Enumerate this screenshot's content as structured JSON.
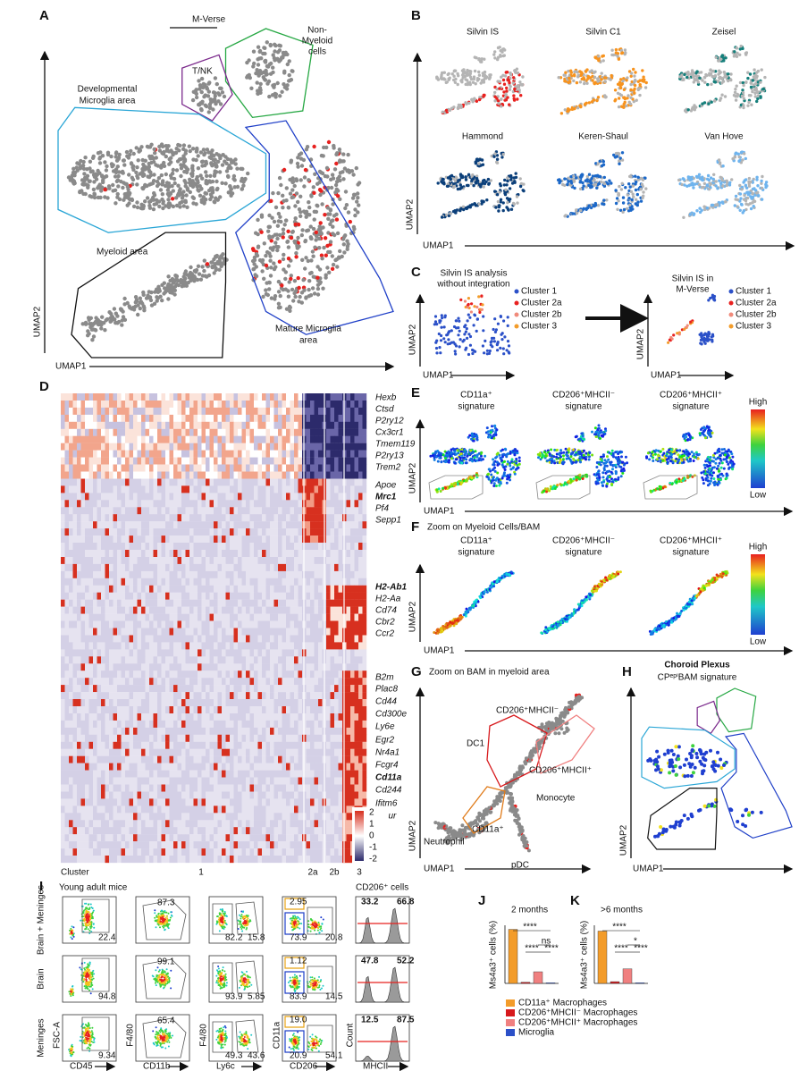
{
  "panels": {
    "A": {
      "label": "A",
      "title": "M-Verse",
      "tnk": "T/NK",
      "non_myeloid": [
        "Non-",
        "Myeloid",
        "cells"
      ],
      "developmental": [
        "Developmental",
        "Microglia area"
      ],
      "myeloid": "Myeloid area",
      "mature": [
        "Mature Microglia",
        "area"
      ],
      "x_axis": "UMAP1",
      "y_axis": "UMAP2"
    },
    "B": {
      "label": "B",
      "datasets": [
        "Silvin IS",
        "Silvin C1",
        "Zeisel",
        "Hammond",
        "Keren-Shaul",
        "Van Hove"
      ],
      "colors": [
        "#e8211f",
        "#f7931e",
        "#157f7b",
        "#0b3f7a",
        "#1c68c8",
        "#6fb4ee"
      ],
      "x_axis": "UMAP1",
      "y_axis": "UMAP2"
    },
    "C": {
      "label": "C",
      "left_title": [
        "Silvin IS analysis",
        "without integration"
      ],
      "right_title": [
        "Silvin IS in",
        "M-Verse"
      ],
      "legend": [
        {
          "name": "Cluster 1",
          "color": "#2b50c8"
        },
        {
          "name": "Cluster 2a",
          "color": "#e8211f"
        },
        {
          "name": "Cluster 2b",
          "color": "#f08a7a"
        },
        {
          "name": "Cluster 3",
          "color": "#f39c2a"
        }
      ],
      "x_axis": "UMAP1",
      "y_axis": "UMAP2"
    },
    "D": {
      "label": "D",
      "highlight_color": "#e02020",
      "genes": [
        {
          "name": "Hexb"
        },
        {
          "name": "Ctsd"
        },
        {
          "name": "P2ry12"
        },
        {
          "name": "Cx3cr1"
        },
        {
          "name": "Tmem119"
        },
        {
          "name": "P2ry13"
        },
        {
          "name": "Trem2"
        },
        {
          "name": "Apoe"
        },
        {
          "name": "Mrc1",
          "highlight": true
        },
        {
          "name": "Pf4"
        },
        {
          "name": "Sepp1"
        },
        {
          "name": "H2-Ab1",
          "highlight": true
        },
        {
          "name": "H2-Aa"
        },
        {
          "name": "Cd74"
        },
        {
          "name": "Cbr2"
        },
        {
          "name": "Ccr2"
        },
        {
          "name": "B2m"
        },
        {
          "name": "Plac8"
        },
        {
          "name": "Cd44"
        },
        {
          "name": "Cd300e"
        },
        {
          "name": "Ly6e"
        },
        {
          "name": "Egr2"
        },
        {
          "name": "Nr4a1"
        },
        {
          "name": "Fcgr4"
        },
        {
          "name": "Cd11a",
          "highlight": true
        },
        {
          "name": "Cd244"
        },
        {
          "name": "Ifitm6"
        },
        {
          "name": "Plaur"
        }
      ],
      "cluster_title": "Cluster",
      "clusters": [
        "1",
        "2a",
        "2b",
        "3"
      ],
      "colorbar": [
        2,
        1,
        0,
        -1,
        -2
      ]
    },
    "E": {
      "label": "E",
      "signatures": [
        [
          "CD11a⁺",
          "signature"
        ],
        [
          "CD206⁺MHCII⁻",
          "signature"
        ],
        [
          "CD206⁺MHCII⁺",
          "signature"
        ]
      ],
      "high": "High",
      "low": "Low",
      "x_axis": "UMAP1",
      "y_axis": "UMAP2"
    },
    "F": {
      "label": "F",
      "title": "Zoom on Myeloid Cells/BAM",
      "signatures": [
        [
          "CD11a⁺",
          "signature"
        ],
        [
          "CD206⁺MHCII⁻",
          "signature"
        ],
        [
          "CD206⁺MHCII⁺",
          "signature"
        ]
      ],
      "high": "High",
      "low": "Low",
      "x_axis": "UMAP1",
      "y_axis": "UMAP2"
    },
    "G": {
      "label": "G",
      "title": "Zoom on BAM in myeloid area",
      "mhcii_neg": "CD206⁺MHCII⁻",
      "dc1": "DC1",
      "mhcii_pos": "CD206⁺MHCII⁺",
      "monocyte": "Monocyte",
      "cd11a": "CD11a⁺",
      "neutrophil": "Neutrophil",
      "pdc": "pDC",
      "x_axis": "UMAP1",
      "y_axis": "UMAP2"
    },
    "H": {
      "label": "H",
      "title": "Choroid Plexus",
      "subtitle": "CPᵉᵖⁱBAM signature",
      "x_axis": "UMAP1",
      "y_axis": "UMAP2"
    },
    "I": {
      "label": "I",
      "subtitle": "Young adult mice",
      "histogram_title": "CD206⁺ cells",
      "x_axes": [
        "CD45",
        "CD11b",
        "Ly6c",
        "CD206",
        "MHCII"
      ],
      "y_axes": [
        "FSC-A",
        "F4/80",
        "F4/80",
        "CD11a",
        "Count"
      ],
      "rows": [
        {
          "name": "Brain + Meninges",
          "gates": [
            "22.4",
            "87.3",
            "82.2",
            "15.8",
            "2.95",
            "73.9",
            "20.8",
            "33.2",
            "66.8"
          ]
        },
        {
          "name": "Brain",
          "gates": [
            "94.8",
            "99.1",
            "93.9",
            "5.85",
            "1.12",
            "83.9",
            "14.5",
            "47.8",
            "52.2"
          ]
        },
        {
          "name": "Meninges",
          "gates": [
            "9.34",
            "65.4",
            "49.3",
            "43.6",
            "19.0",
            "20.9",
            "54.1",
            "12.5",
            "87.5"
          ]
        }
      ]
    },
    "J": {
      "label": "J",
      "title": "2 months",
      "y_axis": "Ms4a3⁺ cells (%)",
      "ylim": [
        0,
        100
      ],
      "values": [
        93,
        2,
        20,
        1
      ],
      "significance": [
        "****",
        "ns",
        "****",
        "****"
      ]
    },
    "K": {
      "label": "K",
      "title": ">6 months",
      "ylim": [
        0,
        100
      ],
      "values": [
        90,
        3,
        25,
        1
      ],
      "significance": [
        "****",
        "*",
        "****",
        "****"
      ]
    },
    "legend": [
      {
        "name": "CD11a⁺ Macrophages",
        "color": "#f39c2a"
      },
      {
        "name": "CD206⁺MHCII⁻ Macrophages",
        "color": "#d7191c"
      },
      {
        "name": "CD206⁺MHCII⁺ Macrophages",
        "color": "#f08080"
      },
      {
        "name": "Microglia",
        "color": "#2b50c8"
      }
    ]
  }
}
